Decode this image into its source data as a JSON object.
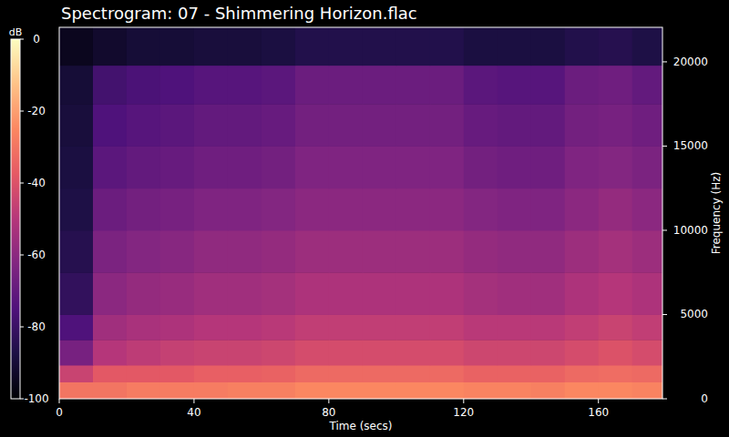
{
  "chart_data": {
    "type": "heatmap",
    "title": "Spectrogram: 07 - Shimmering Horizon.flac",
    "x_label": "Time (secs)",
    "y_label": "Frequency (Hz)",
    "xlim": [
      0,
      179
    ],
    "xticks": [
      0,
      40,
      80,
      120,
      160
    ],
    "ylim": [
      0,
      22050
    ],
    "yticks": [
      0,
      5000,
      10000,
      15000,
      20000
    ],
    "xbins": [
      0,
      10,
      20,
      30,
      40,
      50,
      60,
      70,
      80,
      90,
      100,
      110,
      120,
      130,
      140,
      150,
      160,
      170,
      179
    ],
    "ybins": [
      0,
      1000,
      2000,
      3500,
      5000,
      7500,
      10000,
      12500,
      15000,
      17500,
      19800,
      22050
    ],
    "cells": [
      [
        -30,
        -30,
        -28,
        -28,
        -28,
        -27,
        -27,
        -25,
        -25,
        -25,
        -25,
        -25,
        -26,
        -26,
        -27,
        -25,
        -25,
        -26
      ],
      [
        -45,
        -38,
        -38,
        -38,
        -36,
        -36,
        -35,
        -33,
        -33,
        -33,
        -33,
        -33,
        -35,
        -35,
        -35,
        -33,
        -32,
        -33
      ],
      [
        -65,
        -50,
        -48,
        -46,
        -45,
        -45,
        -44,
        -42,
        -42,
        -42,
        -42,
        -42,
        -44,
        -44,
        -44,
        -42,
        -40,
        -42
      ],
      [
        -75,
        -55,
        -53,
        -52,
        -50,
        -50,
        -49,
        -47,
        -47,
        -47,
        -47,
        -47,
        -49,
        -49,
        -49,
        -47,
        -45,
        -47
      ],
      [
        -82,
        -60,
        -58,
        -57,
        -55,
        -55,
        -54,
        -52,
        -52,
        -52,
        -52,
        -52,
        -54,
        -55,
        -55,
        -52,
        -50,
        -52
      ],
      [
        -85,
        -64,
        -62,
        -61,
        -59,
        -59,
        -58,
        -56,
        -56,
        -56,
        -56,
        -56,
        -58,
        -59,
        -59,
        -56,
        -54,
        -56
      ],
      [
        -87,
        -68,
        -66,
        -65,
        -63,
        -63,
        -62,
        -60,
        -60,
        -60,
        -60,
        -60,
        -62,
        -63,
        -63,
        -60,
        -58,
        -60
      ],
      [
        -88,
        -72,
        -70,
        -69,
        -67,
        -67,
        -66,
        -63,
        -63,
        -63,
        -63,
        -63,
        -66,
        -67,
        -67,
        -63,
        -62,
        -64
      ],
      [
        -89,
        -75,
        -73,
        -72,
        -70,
        -70,
        -69,
        -66,
        -66,
        -66,
        -66,
        -66,
        -69,
        -70,
        -70,
        -66,
        -65,
        -67
      ],
      [
        -90,
        -78,
        -76,
        -75,
        -73,
        -73,
        -72,
        -68,
        -68,
        -68,
        -68,
        -68,
        -72,
        -73,
        -73,
        -68,
        -67,
        -70
      ],
      [
        -95,
        -92,
        -90,
        -90,
        -89,
        -89,
        -88,
        -86,
        -86,
        -86,
        -86,
        -86,
        -88,
        -88,
        -88,
        -86,
        -85,
        -87
      ]
    ],
    "colorbar": {
      "label": "dB",
      "range": [
        -100,
        0
      ],
      "ticks": [
        0,
        -20,
        -40,
        -60,
        -80,
        -100
      ]
    }
  }
}
